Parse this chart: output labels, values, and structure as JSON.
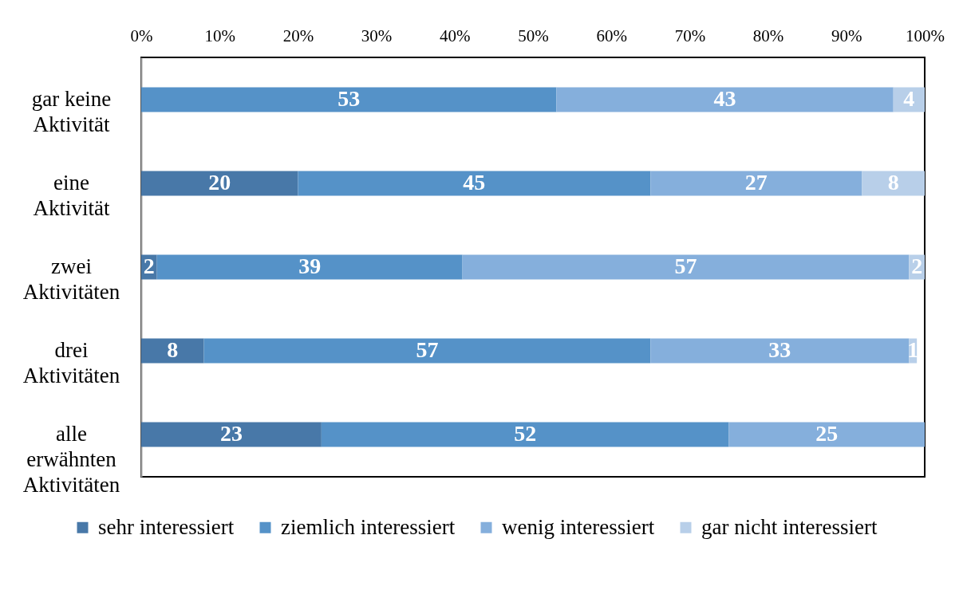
{
  "chart_data": {
    "type": "bar",
    "orientation": "horizontal",
    "stacked": true,
    "categories": [
      "gar keine Aktivität",
      "eine Aktivität",
      "zwei Aktivitäten",
      "drei Aktivitäten",
      "alle erwähnten Aktivitäten"
    ],
    "series": [
      {
        "name": "sehr interessiert",
        "color": "#4878a8",
        "values": [
          0,
          20,
          2,
          8,
          23
        ],
        "value_labels": [
          null,
          "20",
          "2",
          "8",
          "23"
        ]
      },
      {
        "name": "ziemlich interessiert",
        "color": "#5592c8",
        "values": [
          53,
          45,
          39,
          57,
          52
        ],
        "value_labels": [
          "53",
          "45",
          "39",
          "57",
          "52"
        ]
      },
      {
        "name": "wenig interessiert",
        "color": "#85afdc",
        "values": [
          43,
          27,
          57,
          33,
          25
        ],
        "value_labels": [
          "43",
          "27",
          "57",
          "33",
          "25"
        ]
      },
      {
        "name": "gar nicht interessiert",
        "color": "#b8cfe9",
        "values": [
          4,
          8,
          2,
          1,
          0
        ],
        "value_labels": [
          "4",
          "8",
          "2",
          "1",
          null
        ]
      }
    ],
    "xlim": [
      0,
      100
    ],
    "xticks": [
      {
        "value": 0,
        "label": "0%"
      },
      {
        "value": 10,
        "label": "10%"
      },
      {
        "value": 20,
        "label": "20%"
      },
      {
        "value": 30,
        "label": "30%"
      },
      {
        "value": 40,
        "label": "40%"
      },
      {
        "value": 50,
        "label": "50%"
      },
      {
        "value": 60,
        "label": "60%"
      },
      {
        "value": 70,
        "label": "70%"
      },
      {
        "value": 80,
        "label": "80%"
      },
      {
        "value": 90,
        "label": "90%"
      },
      {
        "value": 100,
        "label": "100%"
      }
    ],
    "legend": "bottom",
    "grid": false
  }
}
